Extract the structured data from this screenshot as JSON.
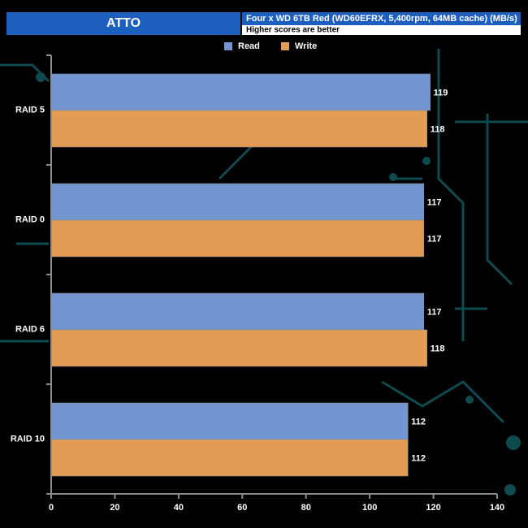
{
  "chart_data": {
    "type": "hbar",
    "title": "ATTO",
    "subtitle": "Four x WD 6TB Red (WD60EFRX, 5,400rpm, 64MB cache) (MB/s)",
    "annotation": "Higher scores are better",
    "categories": [
      "RAID 5",
      "RAID 0",
      "RAID 6",
      "RAID 10"
    ],
    "series": [
      {
        "name": "Read",
        "color": "#7395d0",
        "values": [
          119,
          117,
          117,
          112
        ]
      },
      {
        "name": "Write",
        "color": "#e39c53",
        "values": [
          118,
          117,
          118,
          112
        ]
      }
    ],
    "xlim": [
      0,
      140
    ],
    "xticks": [
      0,
      20,
      40,
      60,
      80,
      100,
      120,
      140
    ],
    "legend": "top"
  }
}
